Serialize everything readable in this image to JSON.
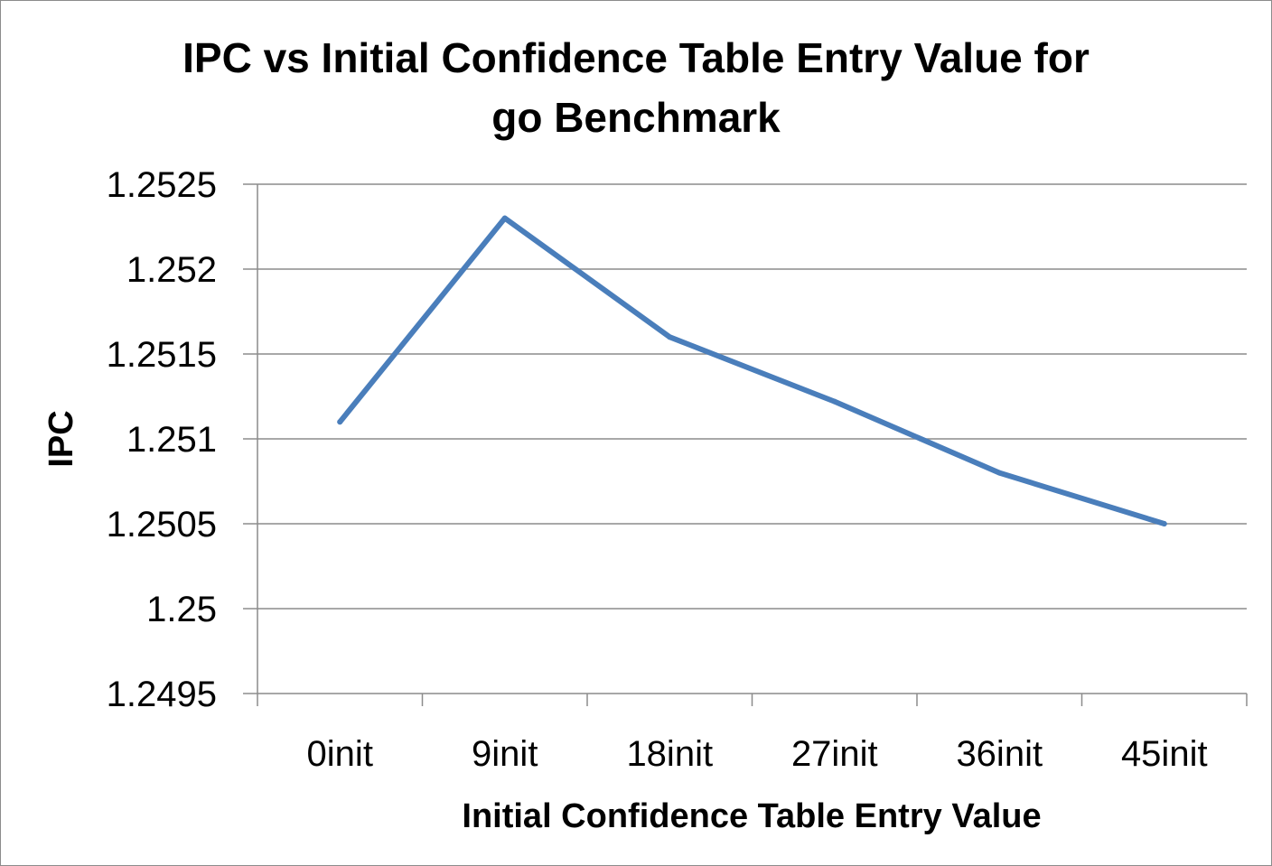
{
  "chart_data": {
    "type": "line",
    "title_lines": [
      "IPC vs Initial Confidence Table Entry Value for",
      "go Benchmark"
    ],
    "xlabel": "Initial Confidence Table Entry Value",
    "ylabel": "IPC",
    "categories": [
      "0init",
      "9init",
      "18init",
      "27init",
      "36init",
      "45init"
    ],
    "series": [
      {
        "values": [
          1.2511,
          1.2523,
          1.2516,
          1.25122,
          1.2508,
          1.2505
        ]
      }
    ],
    "ylim": [
      1.2495,
      1.2525
    ],
    "yticks": [
      1.2495,
      1.25,
      1.2505,
      1.251,
      1.2515,
      1.252,
      1.2525
    ],
    "ytick_labels": [
      "1.2495",
      "1.25",
      "1.2505",
      "1.251",
      "1.2515",
      "1.252",
      "1.2525"
    ],
    "grid": true,
    "legend": "none",
    "colors": {
      "series": "#4a7ebb",
      "grid": "#8c8c8c",
      "axis": "#8c8c8c"
    }
  }
}
